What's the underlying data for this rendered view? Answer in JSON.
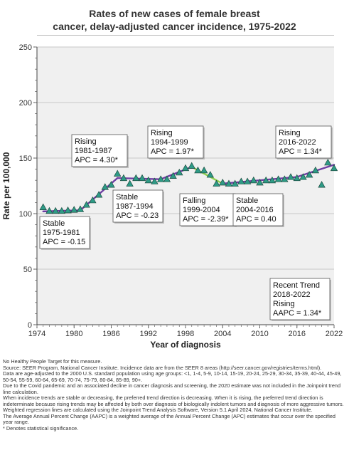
{
  "title_lines": [
    "Rates of new cases of female breast",
    "cancer, delay-adjusted cancer incidence, 1975-2022"
  ],
  "chart_data": {
    "type": "line",
    "xlabel": "Year of diagnosis",
    "ylabel": "Rate per 100,000",
    "xlim": [
      1974,
      2022
    ],
    "ylim": [
      0,
      250
    ],
    "x_ticks": [
      1974,
      1980,
      1986,
      1992,
      1998,
      2004,
      2010,
      2016,
      2022
    ],
    "y_ticks": [
      0,
      50,
      100,
      150,
      200,
      250
    ],
    "grid": "horizontal",
    "background": "#f0f0f0",
    "observed": {
      "marker": "triangle",
      "color": "#2e9b86",
      "x": [
        1975,
        1976,
        1977,
        1978,
        1979,
        1980,
        1981,
        1982,
        1983,
        1984,
        1985,
        1986,
        1987,
        1988,
        1989,
        1990,
        1991,
        1992,
        1993,
        1994,
        1995,
        1996,
        1997,
        1998,
        1999,
        2000,
        2001,
        2002,
        2003,
        2004,
        2005,
        2006,
        2007,
        2008,
        2009,
        2010,
        2011,
        2012,
        2013,
        2014,
        2015,
        2016,
        2017,
        2018,
        2019,
        2020,
        2021,
        2022
      ],
      "y": [
        105.8,
        102.5,
        102.5,
        102.5,
        103,
        103.5,
        104,
        108,
        112,
        117,
        124,
        126,
        136,
        132,
        127,
        132,
        132,
        130,
        129,
        131,
        131,
        134,
        137,
        141,
        143,
        139,
        139,
        135,
        127,
        128,
        127,
        127,
        129,
        129,
        130,
        128,
        130,
        130,
        131,
        131,
        133,
        132,
        133,
        135,
        139,
        126,
        146,
        141
      ]
    },
    "trend": {
      "color": "#6e3fa3",
      "x": [
        1975,
        1981,
        1987,
        1994,
        1999,
        2004,
        2016,
        2022
      ],
      "y": [
        102,
        103,
        132,
        131,
        142,
        127,
        133,
        144
      ],
      "falling_segment_color": "#8fd14f"
    },
    "annotations": [
      {
        "lines": [
          "Stable",
          "1975-1981",
          "APC = -0.15"
        ]
      },
      {
        "lines": [
          "Rising",
          "1981-1987",
          "APC =  4.30*"
        ]
      },
      {
        "lines": [
          "Stable",
          "1987-1994",
          "APC = -0.23"
        ]
      },
      {
        "lines": [
          "Rising",
          "1994-1999",
          "APC =  1.97*"
        ]
      },
      {
        "lines": [
          "Falling",
          "1999-2004",
          "APC = -2.39*"
        ]
      },
      {
        "lines": [
          "Stable",
          "2004-2016",
          "APC =  0.40"
        ]
      },
      {
        "lines": [
          "Rising",
          "2016-2022",
          "APC =  1.34*"
        ]
      },
      {
        "lines": [
          "Recent Trend",
          "2018-2022",
          "Rising",
          "AAPC =  1.34*"
        ]
      }
    ]
  },
  "notes": [
    "No Healthy People Target for this measure.",
    "Source: SEER Program, National Cancer Institute. Incidence data are from the SEER 8 areas (http://seer.cancer.gov/registries/terms.html).",
    "Data are age-adjusted to the 2000 U.S. standard population using age groups: <1, 1-4, 5-9, 10-14, 15-19, 20-24, 25-29, 30-34, 35-39, 40-44, 45-49, 50-54, 55-59, 60-64, 65-69, 70-74, 75-79, 80-84, 85-89, 90+.",
    "Due to the Covid pandemic and an associated decline in cancer diagnosis and screening, the 2020 estimate was not included in the Joinpoint trend line calculation.",
    "When incidence trends are stable or decreasing, the preferred trend direction is decreasing. When it is rising, the preferred trend direction is indeterminate because rising trends may be affected by both over diagnosis of biologically indolent tumors and diagnosis of more aggressive tumors.",
    "Weighted regression lines are calculated using the Joinpoint Trend Analysis Software, Version 5.1 April 2024, National Cancer Institute.",
    "The Average Annual Percent Change (AAPC) is a weighted average of the Annual Percent Change (APC) estimates that occur over the specified year range.",
    "* Denotes statistical significance."
  ]
}
